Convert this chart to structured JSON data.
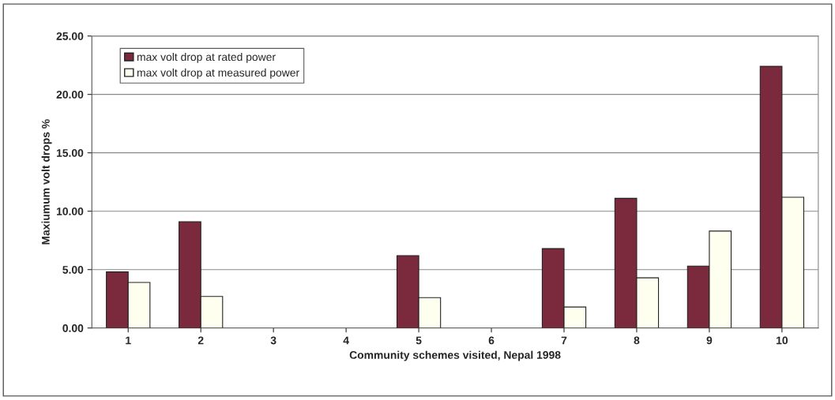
{
  "chart_data": {
    "type": "bar",
    "xlabel": "Community schemes visited, Nepal 1998",
    "ylabel": "Maxiumum volt drops %",
    "categories": [
      "1",
      "2",
      "3",
      "4",
      "5",
      "6",
      "7",
      "8",
      "9",
      "10"
    ],
    "series": [
      {
        "name": "max volt drop at rated power",
        "color": "#7a2a3c",
        "values": [
          4.8,
          9.1,
          null,
          null,
          6.2,
          null,
          6.8,
          11.1,
          5.3,
          22.4
        ]
      },
      {
        "name": "max volt drop at measured power",
        "color": "#fffff0",
        "values": [
          3.9,
          2.7,
          null,
          null,
          2.6,
          null,
          1.8,
          4.3,
          8.3,
          11.2
        ]
      }
    ],
    "ylim": [
      0,
      25
    ],
    "yticks": [
      {
        "value": 0,
        "label": "0.00"
      },
      {
        "value": 5,
        "label": "5.00"
      },
      {
        "value": 10,
        "label": "10.00"
      },
      {
        "value": 15,
        "label": "15.00"
      },
      {
        "value": 20,
        "label": "20.00"
      },
      {
        "value": 25,
        "label": "25.00"
      }
    ],
    "grid": "y",
    "legend": "top left"
  }
}
